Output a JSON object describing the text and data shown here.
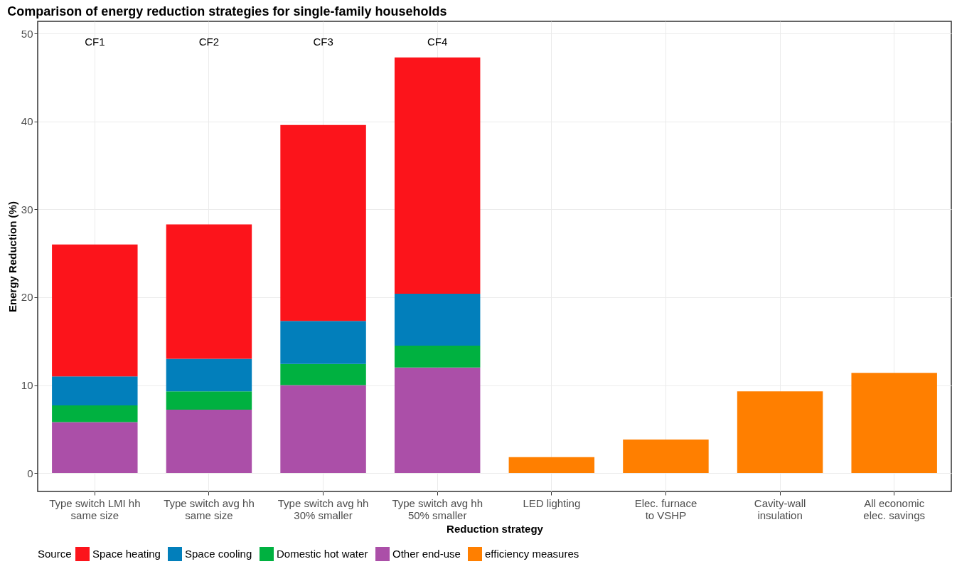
{
  "chart_data": {
    "type": "bar",
    "title": "Comparison of energy reduction strategies for single-family households",
    "xlabel": "Reduction strategy",
    "ylabel": "Energy Reduction (%)",
    "legend_title": "Source",
    "categories": [
      "Type switch LMI hh\nsame size",
      "Type switch avg hh\nsame size",
      "Type switch avg hh\n30% smaller",
      "Type switch avg hh\n50% smaller",
      "LED lighting",
      "Elec. furnace\nto VSHP",
      "Cavity-wall\ninsulation",
      "All economic\nelec. savings"
    ],
    "stacked": true,
    "series": [
      {
        "name": "efficiency measures",
        "color": "#ff7f00",
        "values": [
          null,
          null,
          null,
          null,
          1.8,
          3.8,
          9.3,
          11.4
        ]
      },
      {
        "name": "Other end-use",
        "color": "#ab4fa8",
        "values": [
          5.8,
          7.2,
          10.0,
          12.0,
          null,
          null,
          null,
          null
        ]
      },
      {
        "name": "Domestic hot water",
        "color": "#00b140",
        "values": [
          1.9,
          2.1,
          2.4,
          2.5,
          null,
          null,
          null,
          null
        ]
      },
      {
        "name": "Space cooling",
        "color": "#027fbb",
        "values": [
          3.3,
          3.7,
          4.9,
          5.9,
          null,
          null,
          null,
          null
        ]
      },
      {
        "name": "Space heating",
        "color": "#fc141b",
        "values": [
          15.0,
          15.3,
          22.3,
          26.9,
          null,
          null,
          null,
          null
        ]
      }
    ],
    "annotations": [
      "CF1",
      "CF2",
      "CF3",
      "CF4"
    ],
    "ylim": [
      -2.1,
      51.4
    ],
    "yticks": [
      0,
      10,
      20,
      30,
      40,
      50
    ],
    "grid": true,
    "legend": "bottom"
  }
}
